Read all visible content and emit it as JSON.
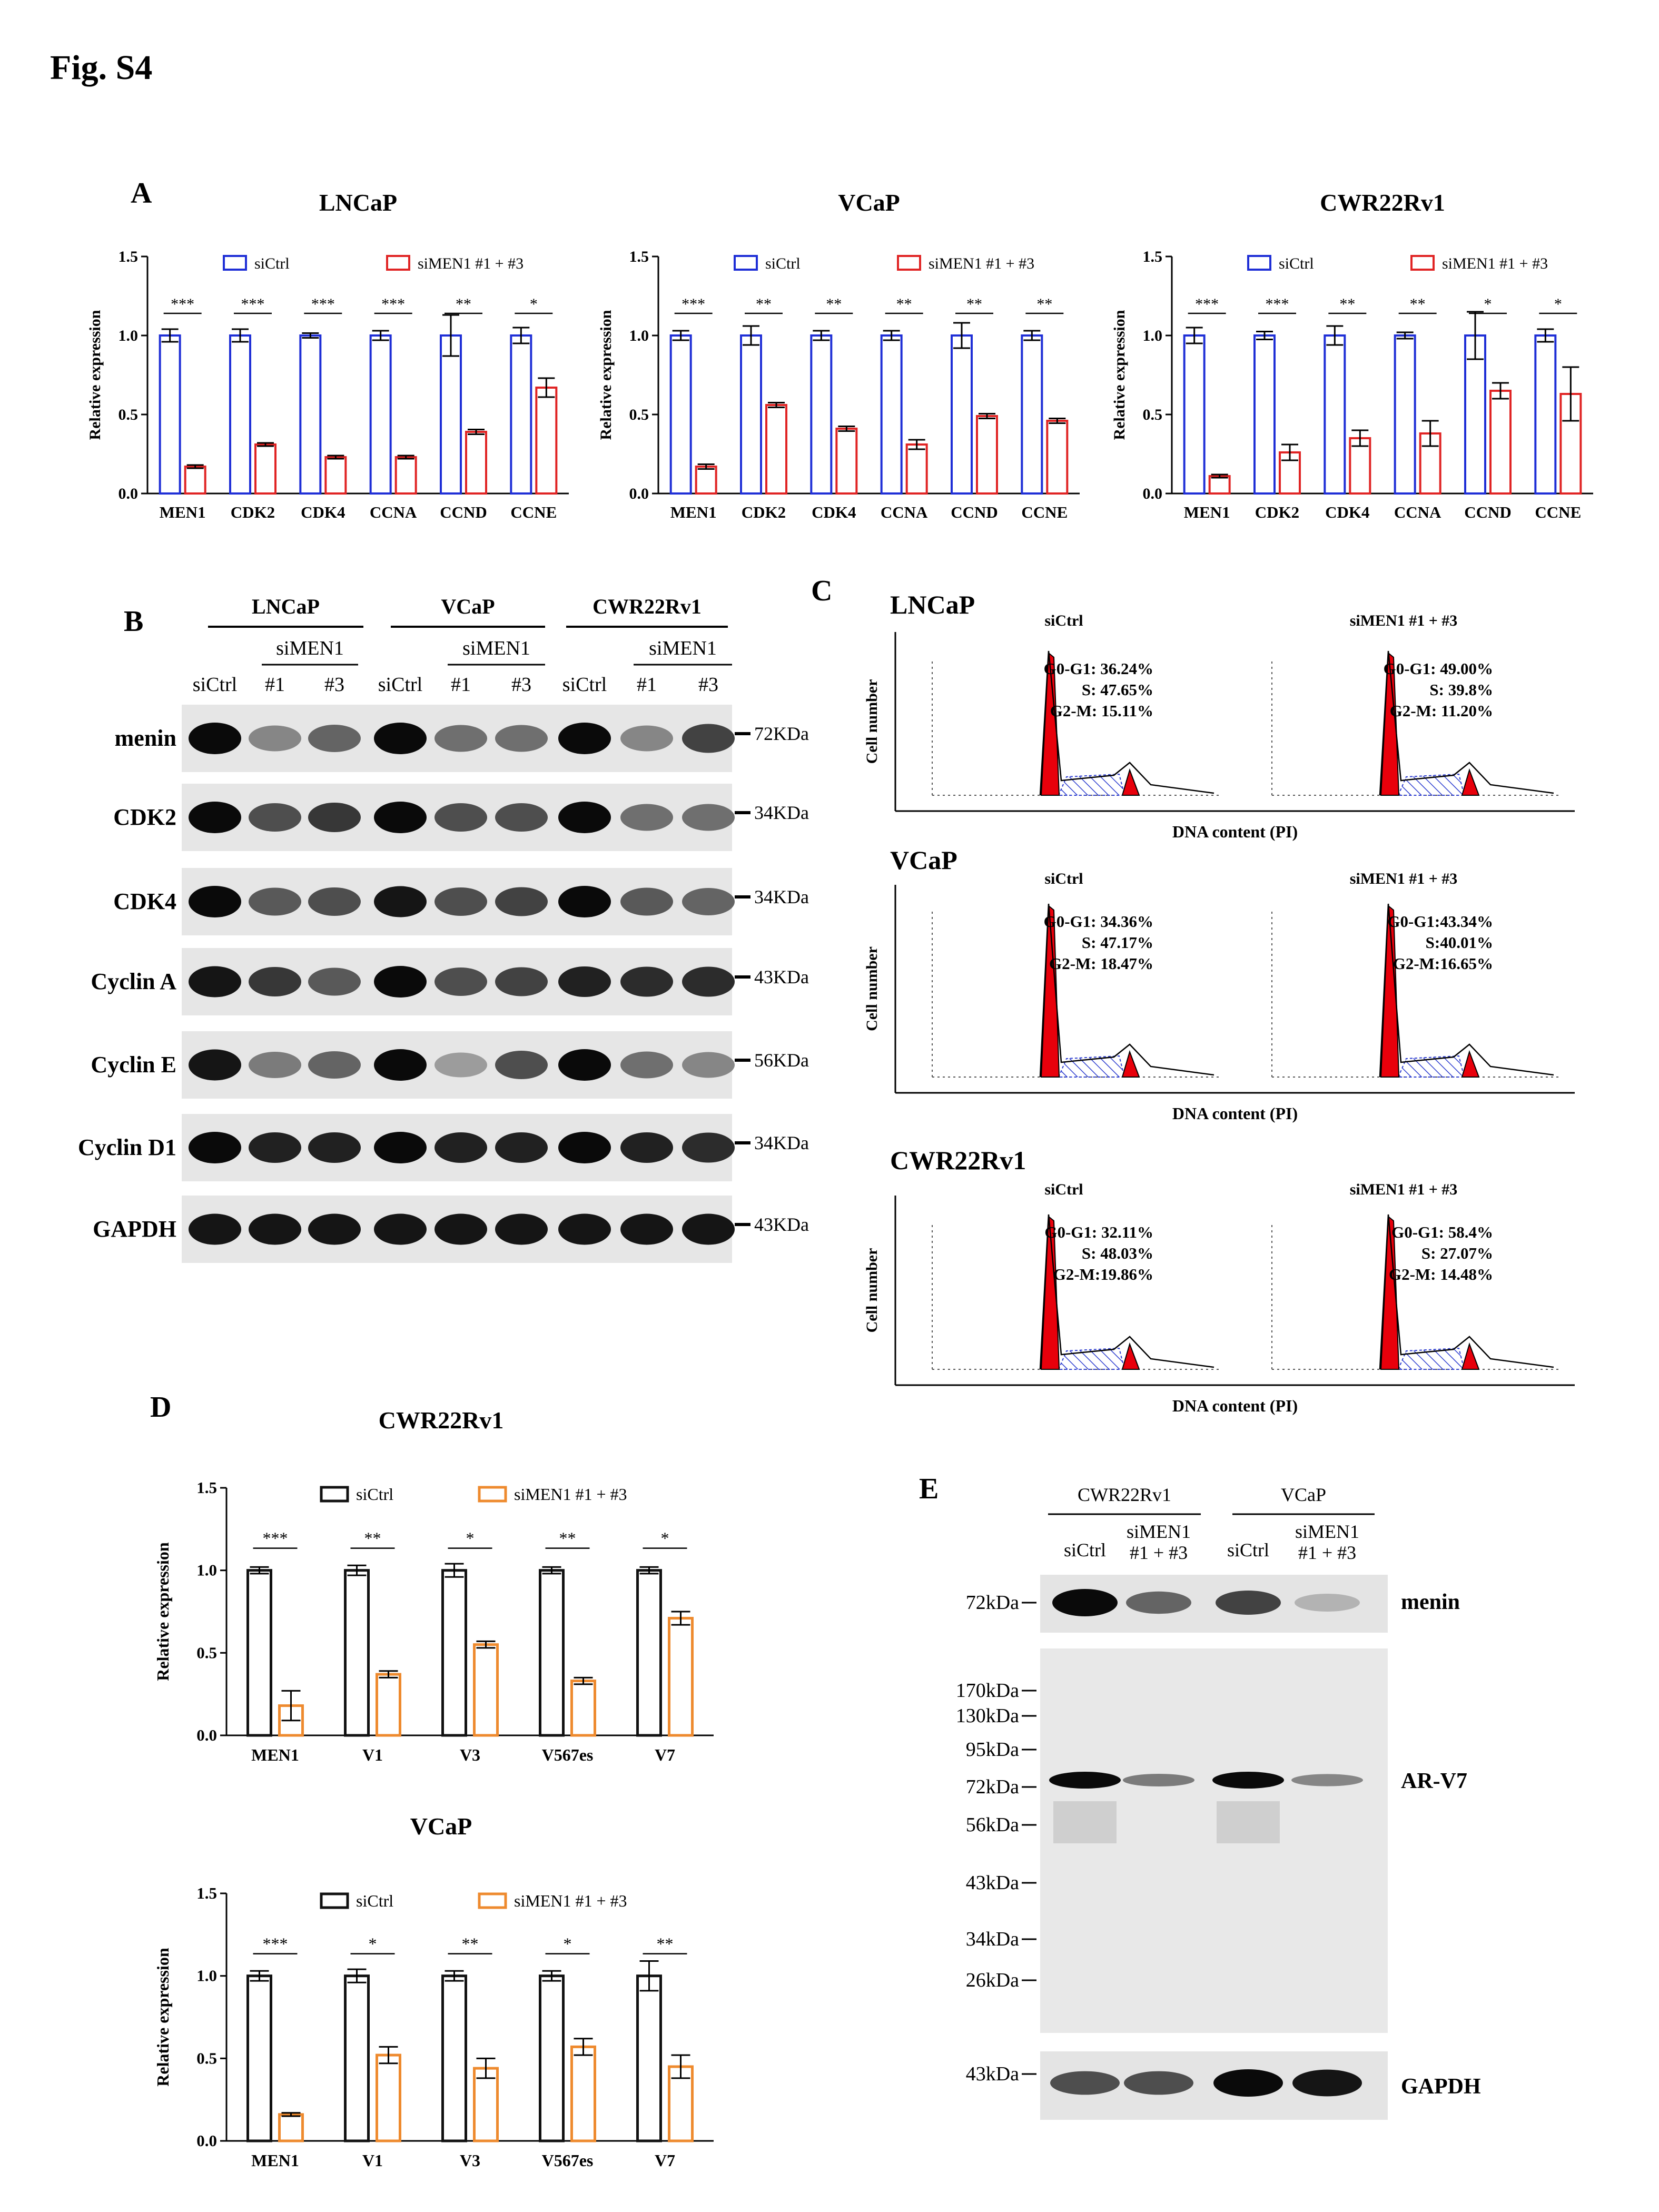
{
  "figure_title": "Fig. S4",
  "colors": {
    "blue": "#1f2fd6",
    "red": "#e02424",
    "black": "#111111",
    "orange": "#ee8a2e",
    "peak_red": "#e8000b",
    "hatch_blue": "#2f3fd0"
  },
  "panel_a": {
    "label": "A",
    "ylabel": "Relative expression",
    "legend": [
      "siCtrl",
      "siMEN1 #1 + #3"
    ]
  },
  "panel_b": {
    "label": "B",
    "cell_lines": [
      "LNCaP",
      "VCaP",
      "CWR22Rv1"
    ],
    "lane_header": "siMEN1",
    "lanes": [
      "siCtrl",
      "#1",
      "#3",
      "siCtrl",
      "#1",
      "#3",
      "siCtrl",
      "#1",
      "#3"
    ],
    "rows": [
      {
        "name": "menin",
        "size": "72KDa",
        "intensity": [
          1.0,
          0.45,
          0.6,
          1.0,
          0.55,
          0.55,
          1.0,
          0.45,
          0.75
        ]
      },
      {
        "name": "CDK2",
        "size": "34KDa",
        "intensity": [
          1.0,
          0.7,
          0.8,
          1.0,
          0.7,
          0.7,
          1.0,
          0.55,
          0.55
        ]
      },
      {
        "name": "CDK4",
        "size": "34KDa",
        "intensity": [
          1.0,
          0.65,
          0.7,
          0.95,
          0.7,
          0.75,
          1.0,
          0.65,
          0.6
        ]
      },
      {
        "name": "Cyclin A",
        "size": "43KDa",
        "intensity": [
          0.95,
          0.8,
          0.65,
          1.0,
          0.7,
          0.75,
          0.9,
          0.85,
          0.85
        ]
      },
      {
        "name": "Cyclin E",
        "size": "56KDa",
        "intensity": [
          0.95,
          0.5,
          0.6,
          1.0,
          0.35,
          0.7,
          1.0,
          0.55,
          0.45
        ]
      },
      {
        "name": "Cyclin D1",
        "size": "34KDa",
        "intensity": [
          1.0,
          0.9,
          0.9,
          1.0,
          0.9,
          0.9,
          1.0,
          0.9,
          0.85
        ]
      },
      {
        "name": "GAPDH",
        "size": "43KDa",
        "intensity": [
          0.95,
          0.95,
          0.95,
          0.95,
          0.95,
          0.95,
          0.95,
          0.95,
          0.95
        ]
      }
    ]
  },
  "panel_c": {
    "label": "C",
    "ylabel": "Cell number",
    "xlabel": "DNA content (PI)",
    "rows": [
      {
        "cell_line": "LNCaP",
        "plots": [
          {
            "title": "siCtrl",
            "stats": [
              "G0-G1: 36.24%",
              "S: 47.65%",
              "G2-M: 15.11%"
            ]
          },
          {
            "title": "siMEN1 #1 + #3",
            "stats": [
              "G0-G1: 49.00%",
              "S: 39.8%",
              "G2-M: 11.20%"
            ]
          }
        ]
      },
      {
        "cell_line": "VCaP",
        "plots": [
          {
            "title": "siCtrl",
            "stats": [
              "G0-G1: 34.36%",
              "S: 47.17%",
              "G2-M: 18.47%"
            ]
          },
          {
            "title": "siMEN1 #1 + #3",
            "stats": [
              "G0-G1:43.34%",
              "S:40.01%",
              "G2-M:16.65%"
            ]
          }
        ]
      },
      {
        "cell_line": "CWR22Rv1",
        "plots": [
          {
            "title": "siCtrl",
            "stats": [
              "G0-G1: 32.11%",
              "S: 48.03%",
              "G2-M:19.86%"
            ]
          },
          {
            "title": "siMEN1 #1 + #3",
            "stats": [
              "G0-G1: 58.4%",
              "S: 27.07%",
              "G2-M: 14.48%"
            ]
          }
        ]
      }
    ]
  },
  "panel_d": {
    "label": "D",
    "ylabel": "Relative expression",
    "legend": [
      "siCtrl",
      "siMEN1 #1 + #3"
    ]
  },
  "panel_e": {
    "label": "E",
    "cell_lines": [
      "CWR22Rv1",
      "VCaP"
    ],
    "lanes": [
      [
        "siCtrl"
      ],
      [
        "siMEN1",
        "#1 + #3"
      ],
      [
        "siCtrl"
      ],
      [
        "siMEN1",
        "#1 + #3"
      ]
    ],
    "menin_marker": "72kDa",
    "menin_label": "menin",
    "ar_markers": [
      "170kDa",
      "130kDa",
      "95kDa",
      "72kDa",
      "56kDa",
      "43kDa",
      "34kDa",
      "26kDa"
    ],
    "ar_label": "AR-V7",
    "gapdh_marker": "43kDa",
    "gapdh_label": "GAPDH",
    "menin_intensity": [
      1.0,
      0.6,
      0.75,
      0.25
    ],
    "ar_intensity": [
      1.0,
      0.5,
      1.0,
      0.45
    ],
    "gapdh_intensity": [
      0.7,
      0.7,
      1.0,
      0.95
    ]
  },
  "chart_data": [
    {
      "type": "bar",
      "panel": "A",
      "title": "LNCaP",
      "categories": [
        "MEN1",
        "CDK2",
        "CDK4",
        "CCNA",
        "CCND",
        "CCNE"
      ],
      "series": [
        {
          "name": "siCtrl",
          "values": [
            1.0,
            1.0,
            1.0,
            1.0,
            1.0,
            1.0
          ],
          "errors": [
            0.04,
            0.04,
            0.015,
            0.03,
            0.13,
            0.05
          ]
        },
        {
          "name": "siMEN1 #1 + #3",
          "values": [
            0.17,
            0.31,
            0.23,
            0.23,
            0.39,
            0.67
          ],
          "errors": [
            0.01,
            0.01,
            0.01,
            0.01,
            0.015,
            0.06
          ]
        }
      ],
      "significance": [
        "***",
        "***",
        "***",
        "***",
        "**",
        "*"
      ],
      "xlabel": "",
      "ylabel": "Relative expression",
      "ylim": [
        0,
        1.5
      ],
      "yticks": [
        "0.0",
        "0.5",
        "1.0",
        "1.5"
      ]
    },
    {
      "type": "bar",
      "panel": "A",
      "title": "VCaP",
      "categories": [
        "MEN1",
        "CDK2",
        "CDK4",
        "CCNA",
        "CCND",
        "CCNE"
      ],
      "series": [
        {
          "name": "siCtrl",
          "values": [
            1.0,
            1.0,
            1.0,
            1.0,
            1.0,
            1.0
          ],
          "errors": [
            0.03,
            0.06,
            0.03,
            0.03,
            0.08,
            0.03
          ]
        },
        {
          "name": "siMEN1 #1 + #3",
          "values": [
            0.17,
            0.56,
            0.41,
            0.31,
            0.49,
            0.46
          ],
          "errors": [
            0.015,
            0.015,
            0.015,
            0.03,
            0.015,
            0.015
          ]
        }
      ],
      "significance": [
        "***",
        "**",
        "**",
        "**",
        "**",
        "**"
      ],
      "xlabel": "",
      "ylabel": "Relative expression",
      "ylim": [
        0,
        1.5
      ],
      "yticks": [
        "0.0",
        "0.5",
        "1.0",
        "1.5"
      ]
    },
    {
      "type": "bar",
      "panel": "A",
      "title": "CWR22Rv1",
      "categories": [
        "MEN1",
        "CDK2",
        "CDK4",
        "CCNA",
        "CCND",
        "CCNE"
      ],
      "series": [
        {
          "name": "siCtrl",
          "values": [
            1.0,
            1.0,
            1.0,
            1.0,
            1.0,
            1.0
          ],
          "errors": [
            0.05,
            0.025,
            0.06,
            0.02,
            0.15,
            0.04
          ]
        },
        {
          "name": "siMEN1 #1 + #3",
          "values": [
            0.11,
            0.26,
            0.35,
            0.38,
            0.65,
            0.63
          ],
          "errors": [
            0.01,
            0.05,
            0.05,
            0.08,
            0.05,
            0.17
          ]
        }
      ],
      "significance": [
        "***",
        "***",
        "**",
        "**",
        "*",
        "*"
      ],
      "xlabel": "",
      "ylabel": "Relative expression",
      "ylim": [
        0,
        1.5
      ],
      "yticks": [
        "0.0",
        "0.5",
        "1.0",
        "1.5"
      ]
    },
    {
      "type": "bar",
      "panel": "D",
      "title": "CWR22Rv1",
      "categories": [
        "MEN1",
        "V1",
        "V3",
        "V567es",
        "V7"
      ],
      "series": [
        {
          "name": "siCtrl",
          "values": [
            1.0,
            1.0,
            1.0,
            1.0,
            1.0
          ],
          "errors": [
            0.02,
            0.03,
            0.04,
            0.02,
            0.02
          ]
        },
        {
          "name": "siMEN1 #1 + #3",
          "values": [
            0.18,
            0.37,
            0.55,
            0.33,
            0.71
          ],
          "errors": [
            0.09,
            0.02,
            0.02,
            0.02,
            0.04
          ]
        }
      ],
      "significance": [
        "***",
        "**",
        "*",
        "**",
        "*"
      ],
      "xlabel": "",
      "ylabel": "Relative expression",
      "ylim": [
        0,
        1.5
      ],
      "yticks": [
        "0.0",
        "0.5",
        "1.0",
        "1.5"
      ]
    },
    {
      "type": "bar",
      "panel": "D",
      "title": "VCaP",
      "categories": [
        "MEN1",
        "V1",
        "V3",
        "V567es",
        "V7"
      ],
      "series": [
        {
          "name": "siCtrl",
          "values": [
            1.0,
            1.0,
            1.0,
            1.0,
            1.0
          ],
          "errors": [
            0.03,
            0.04,
            0.03,
            0.03,
            0.09
          ]
        },
        {
          "name": "siMEN1 #1 + #3",
          "values": [
            0.16,
            0.52,
            0.44,
            0.57,
            0.45
          ],
          "errors": [
            0.01,
            0.05,
            0.06,
            0.05,
            0.07
          ]
        }
      ],
      "significance": [
        "***",
        "*",
        "**",
        "*",
        "**"
      ],
      "xlabel": "",
      "ylabel": "Relative expression",
      "ylim": [
        0,
        1.5
      ],
      "yticks": [
        "0.0",
        "0.5",
        "1.0",
        "1.5"
      ]
    }
  ]
}
